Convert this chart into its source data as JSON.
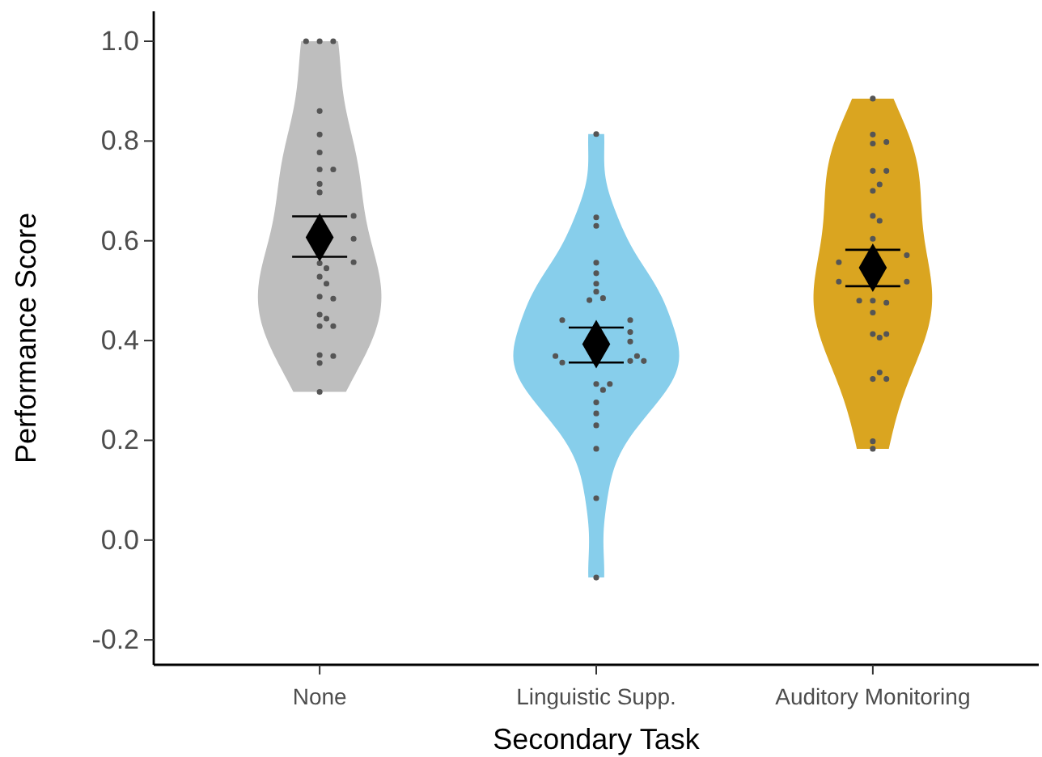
{
  "chart_data": {
    "type": "scatter",
    "xlabel": "Secondary Task",
    "ylabel": "Performance Score",
    "categories": [
      "None",
      "Linguistic Supp.",
      "Auditory Monitoring"
    ],
    "ylim": [
      -0.25,
      1.06
    ],
    "yticks": [
      {
        "value": -0.2,
        "label": "-0.2"
      },
      {
        "value": 0,
        "label": "0.0"
      },
      {
        "value": 0.2,
        "label": "0.2"
      },
      {
        "value": 0.4,
        "label": "0.4"
      },
      {
        "value": 0.6,
        "label": "0.6"
      },
      {
        "value": 0.8,
        "label": "0.8"
      },
      {
        "value": 1,
        "label": "1.0"
      }
    ],
    "grid": false,
    "colors": [
      "#bebebe",
      "#87ceeb",
      "#daa520"
    ],
    "series": [
      {
        "color": "#555555",
        "marker": "circle",
        "x": [
          "None",
          "None",
          "None",
          "None",
          "None",
          "None",
          "None",
          "None",
          "None",
          "None",
          "None",
          "None",
          "None",
          "None",
          "None",
          "None",
          "None",
          "None",
          "None",
          "None",
          "None",
          "None",
          "None",
          "None",
          "None",
          "None",
          "None"
        ],
        "values": [
          1.0,
          1.0,
          1.0,
          0.86,
          0.813,
          0.777,
          0.743,
          0.743,
          0.714,
          0.697,
          0.65,
          0.604,
          0.557,
          0.555,
          0.545,
          0.528,
          0.514,
          0.488,
          0.484,
          0.452,
          0.444,
          0.429,
          0.429,
          0.371,
          0.369,
          0.355,
          0.297
        ]
      },
      {
        "color": "#555555",
        "marker": "circle",
        "x": [
          "Linguistic Supp.",
          "Linguistic Supp.",
          "Linguistic Supp.",
          "Linguistic Supp.",
          "Linguistic Supp.",
          "Linguistic Supp.",
          "Linguistic Supp.",
          "Linguistic Supp.",
          "Linguistic Supp.",
          "Linguistic Supp.",
          "Linguistic Supp.",
          "Linguistic Supp.",
          "Linguistic Supp.",
          "Linguistic Supp.",
          "Linguistic Supp.",
          "Linguistic Supp.",
          "Linguistic Supp.",
          "Linguistic Supp.",
          "Linguistic Supp.",
          "Linguistic Supp.",
          "Linguistic Supp.",
          "Linguistic Supp.",
          "Linguistic Supp.",
          "Linguistic Supp.",
          "Linguistic Supp.",
          "Linguistic Supp.",
          "Linguistic Supp."
        ],
        "values": [
          0.814,
          0.647,
          0.63,
          0.556,
          0.535,
          0.514,
          0.498,
          0.485,
          0.481,
          0.441,
          0.441,
          0.417,
          0.398,
          0.359,
          0.356,
          0.369,
          0.369,
          0.359,
          0.313,
          0.313,
          0.301,
          0.276,
          0.254,
          0.23,
          0.183,
          0.084,
          -0.075
        ]
      },
      {
        "color": "#555555",
        "marker": "circle",
        "x": [
          "Auditory Monitoring",
          "Auditory Monitoring",
          "Auditory Monitoring",
          "Auditory Monitoring",
          "Auditory Monitoring",
          "Auditory Monitoring",
          "Auditory Monitoring",
          "Auditory Monitoring",
          "Auditory Monitoring",
          "Auditory Monitoring",
          "Auditory Monitoring",
          "Auditory Monitoring",
          "Auditory Monitoring",
          "Auditory Monitoring",
          "Auditory Monitoring",
          "Auditory Monitoring",
          "Auditory Monitoring",
          "Auditory Monitoring",
          "Auditory Monitoring",
          "Auditory Monitoring",
          "Auditory Monitoring",
          "Auditory Monitoring",
          "Auditory Monitoring",
          "Auditory Monitoring",
          "Auditory Monitoring",
          "Auditory Monitoring",
          "Auditory Monitoring"
        ],
        "values": [
          0.885,
          0.813,
          0.795,
          0.798,
          0.74,
          0.74,
          0.7,
          0.713,
          0.65,
          0.64,
          0.604,
          0.571,
          0.557,
          0.518,
          0.518,
          0.48,
          0.476,
          0.48,
          0.456,
          0.413,
          0.406,
          0.413,
          0.323,
          0.336,
          0.323,
          0.198,
          0.183
        ]
      },
      {
        "color": "#000000",
        "marker": "diamond",
        "x": [
          "None",
          "Linguistic Supp.",
          "Auditory Monitoring"
        ],
        "values": [
          0.607,
          0.393,
          0.546
        ],
        "errors": [
          [
            0.568,
            0.649
          ],
          [
            0.356,
            0.426
          ],
          [
            0.509,
            0.582
          ]
        ]
      }
    ]
  }
}
